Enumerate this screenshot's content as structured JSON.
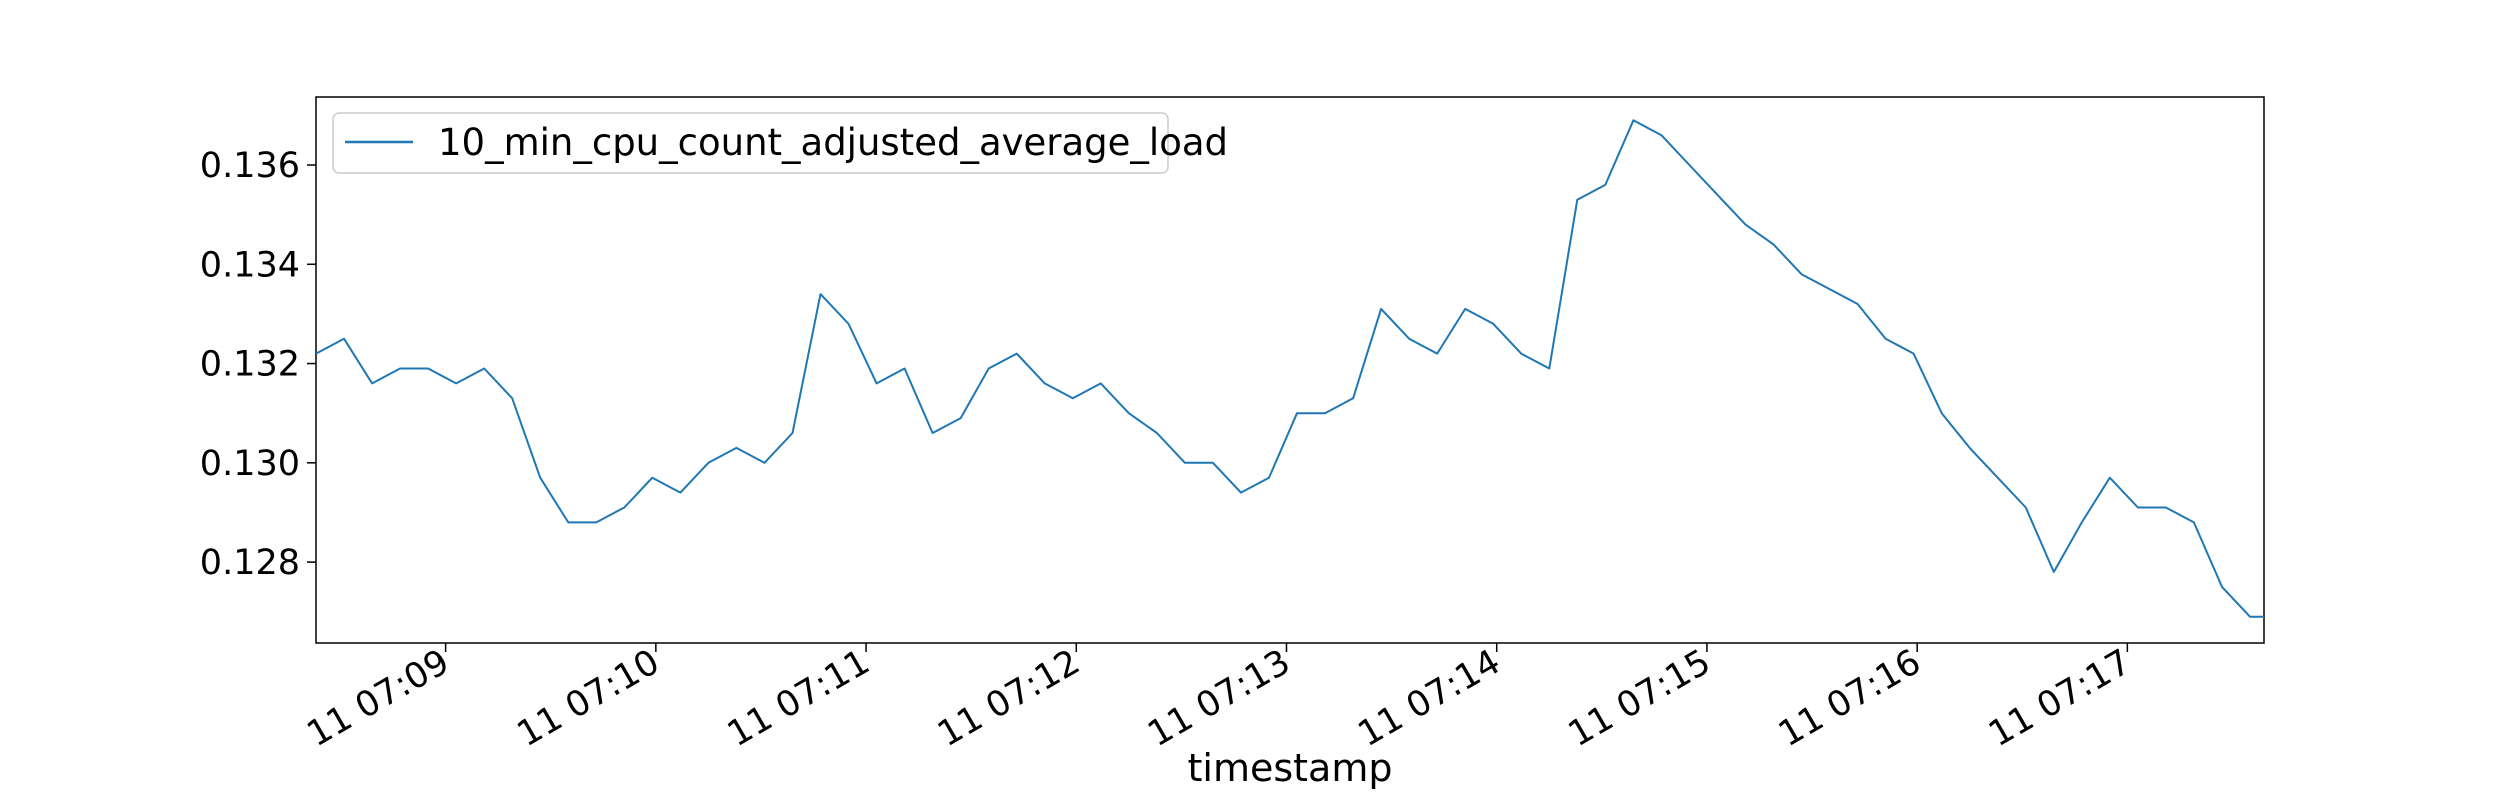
{
  "chart_data": {
    "type": "line",
    "title": "",
    "xlabel": "timestamp",
    "ylabel": "",
    "x_ticks": [
      "11 07:09",
      "11 07:10",
      "11 07:11",
      "11 07:12",
      "11 07:13",
      "11 07:14",
      "11 07:15",
      "11 07:16",
      "11 07:17"
    ],
    "y_ticks": [
      "0.128",
      "0.130",
      "0.132",
      "0.134",
      "0.136"
    ],
    "xlim": [
      "07:08:23",
      "07:17:39"
    ],
    "ylim": [
      0.12637,
      0.13737
    ],
    "grid": false,
    "legend": {
      "position": "top-left"
    },
    "series": [
      {
        "name": "10_min_cpu_count_adjusted_average_load",
        "color": "#1f77b4",
        "x": [
          "07:08:23",
          "07:08:31",
          "07:08:39",
          "07:08:47",
          "07:08:55",
          "07:09:03",
          "07:09:11",
          "07:09:19",
          "07:09:27",
          "07:09:35",
          "07:09:43",
          "07:09:51",
          "07:09:59",
          "07:10:07",
          "07:10:15",
          "07:10:23",
          "07:10:31",
          "07:10:39",
          "07:10:47",
          "07:10:55",
          "07:11:03",
          "07:11:11",
          "07:11:19",
          "07:11:27",
          "07:11:35",
          "07:11:43",
          "07:11:51",
          "07:11:59",
          "07:12:07",
          "07:12:15",
          "07:12:23",
          "07:12:31",
          "07:12:39",
          "07:12:47",
          "07:12:55",
          "07:13:03",
          "07:13:11",
          "07:13:19",
          "07:13:27",
          "07:13:35",
          "07:13:43",
          "07:13:51",
          "07:13:59",
          "07:14:07",
          "07:14:15",
          "07:14:23",
          "07:14:31",
          "07:14:39",
          "07:14:47",
          "07:14:55",
          "07:15:03",
          "07:15:11",
          "07:15:19",
          "07:15:27",
          "07:15:35",
          "07:15:43",
          "07:15:51",
          "07:15:59",
          "07:16:07",
          "07:16:15",
          "07:16:23",
          "07:16:31",
          "07:16:39",
          "07:16:47",
          "07:16:55",
          "07:17:03",
          "07:17:11",
          "07:17:19",
          "07:17:27",
          "07:17:35",
          "07:17:39"
        ],
        "y": [
          0.1322,
          0.1325,
          0.1316,
          0.1319,
          0.1319,
          0.1316,
          0.1319,
          0.1313,
          0.1297,
          0.1288,
          0.1288,
          0.1291,
          0.1297,
          0.1294,
          0.13,
          0.1303,
          0.13,
          0.1306,
          0.1334,
          0.1328,
          0.1316,
          0.1319,
          0.1306,
          0.1309,
          0.1319,
          0.1322,
          0.1316,
          0.1313,
          0.1316,
          0.131,
          0.1306,
          0.13,
          0.13,
          0.1294,
          0.1297,
          0.131,
          0.131,
          0.1313,
          0.1331,
          0.1325,
          0.1322,
          0.1331,
          0.1328,
          0.1322,
          0.1319,
          0.1353,
          0.1356,
          0.1369,
          0.1366,
          0.136,
          0.1354,
          0.1348,
          0.1344,
          0.1338,
          0.1335,
          0.1332,
          0.1325,
          0.1322,
          0.131,
          0.1303,
          0.1297,
          0.1291,
          0.1278,
          0.1288,
          0.1297,
          0.1291,
          0.1291,
          0.1288,
          0.1275,
          0.1269,
          0.1269
        ]
      }
    ]
  }
}
